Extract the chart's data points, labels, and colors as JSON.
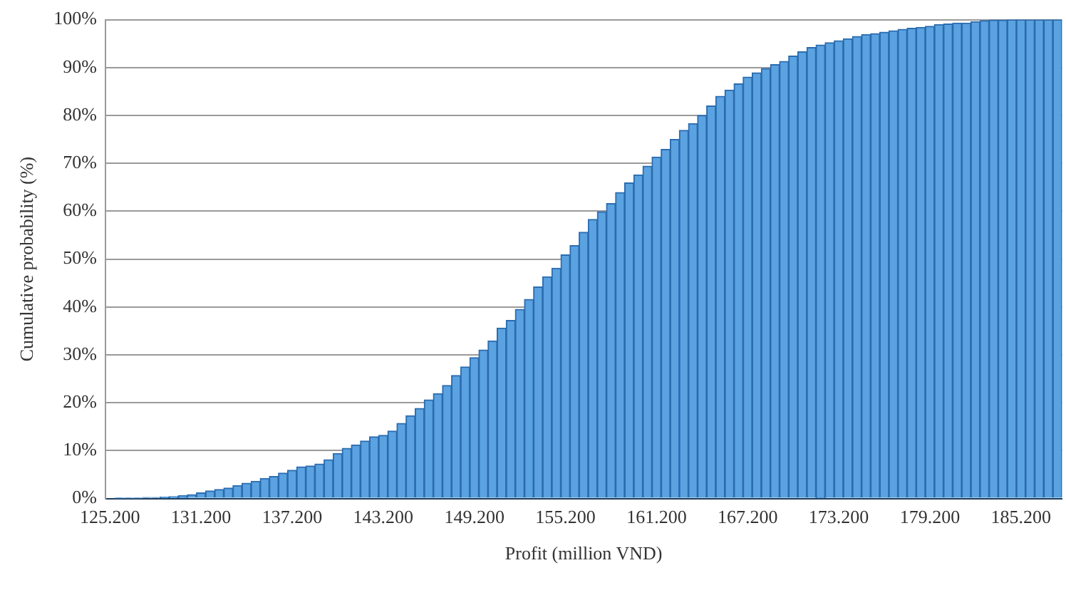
{
  "chart_data": {
    "type": "bar",
    "xlabel": "Profit (million VND)",
    "ylabel": "Cumulative probability (%)",
    "categories": [
      "125.200",
      null,
      null,
      null,
      null,
      null,
      null,
      null,
      null,
      null,
      "131.200",
      null,
      null,
      null,
      null,
      null,
      null,
      null,
      null,
      null,
      "137.200",
      null,
      null,
      null,
      null,
      null,
      null,
      null,
      null,
      null,
      "143.200",
      null,
      null,
      null,
      null,
      null,
      null,
      null,
      null,
      null,
      "149.200",
      null,
      null,
      null,
      null,
      null,
      null,
      null,
      null,
      null,
      "155.200",
      null,
      null,
      null,
      null,
      null,
      null,
      null,
      null,
      null,
      "161.200",
      null,
      null,
      null,
      null,
      null,
      null,
      null,
      null,
      null,
      "167.200",
      null,
      null,
      null,
      null,
      null,
      null,
      null,
      null,
      null,
      "173.200",
      null,
      null,
      null,
      null,
      null,
      null,
      null,
      null,
      null,
      "179.200",
      null,
      null,
      null,
      null,
      null,
      null,
      null,
      null,
      null,
      "185.200",
      null,
      null,
      null,
      null
    ],
    "values": [
      null,
      0.1,
      0.1,
      0.1,
      0.2,
      0.2,
      0.3,
      0.4,
      0.6,
      0.8,
      1.2,
      1.6,
      1.9,
      2.2,
      2.7,
      3.2,
      3.6,
      4.2,
      4.6,
      5.3,
      5.9,
      6.6,
      6.8,
      7.2,
      8.1,
      9.4,
      10.5,
      11.2,
      12.0,
      12.9,
      13.2,
      14.1,
      15.7,
      17.3,
      18.8,
      20.6,
      21.9,
      23.6,
      25.7,
      27.5,
      29.4,
      31.0,
      32.9,
      35.6,
      37.2,
      39.5,
      41.6,
      44.2,
      46.3,
      48.1,
      50.9,
      52.8,
      55.6,
      58.3,
      59.9,
      61.6,
      63.9,
      65.9,
      67.6,
      69.4,
      71.3,
      72.9,
      75.0,
      76.9,
      78.3,
      80.0,
      82.0,
      84.0,
      85.3,
      86.6,
      88.0,
      88.9,
      89.8,
      90.6,
      91.3,
      92.4,
      93.3,
      94.2,
      94.7,
      95.2,
      95.6,
      96.0,
      96.5,
      96.9,
      97.1,
      97.4,
      97.7,
      98.0,
      98.2,
      98.4,
      98.6,
      99.0,
      99.1,
      99.3,
      99.3,
      99.6,
      99.8,
      99.9,
      99.9,
      100,
      100,
      100,
      100,
      100,
      100
    ],
    "color": "#5ba3e0",
    "ylim": [
      0,
      100
    ],
    "yticks": [
      {
        "value": 0,
        "label": "0%"
      },
      {
        "value": 10,
        "label": "10%"
      },
      {
        "value": 20,
        "label": "20%"
      },
      {
        "value": 30,
        "label": "30%"
      },
      {
        "value": 40,
        "label": "40%"
      },
      {
        "value": 50,
        "label": "50%"
      },
      {
        "value": 60,
        "label": "60%"
      },
      {
        "value": 70,
        "label": "70%"
      },
      {
        "value": 80,
        "label": "80%"
      },
      {
        "value": 90,
        "label": "90%"
      },
      {
        "value": 100,
        "label": "100%"
      }
    ],
    "grid": "y",
    "legend": false
  }
}
